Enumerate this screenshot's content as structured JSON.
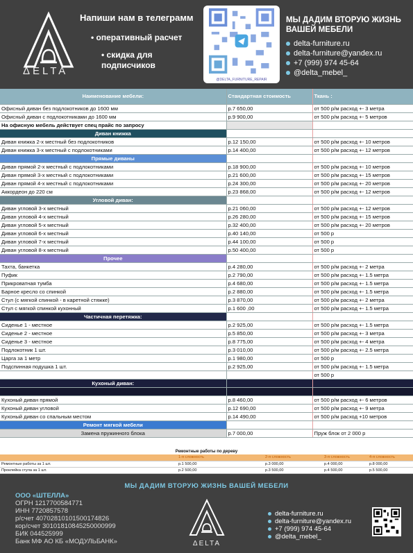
{
  "header": {
    "logo_text": "ΔELTA",
    "title": "Напиши нам в телеграмм",
    "bullets": [
      "оперативный расчет",
      "скидка для подписчиков"
    ],
    "qr_caption": "@DELTA_FURNITURE_REPAIR",
    "slogan": "МЫ ДАДИМ ВТОРУЮ ЖИЗНЬ ВАШЕЙ МЕБЕЛИ",
    "contacts": [
      "delta-furniture.ru",
      "delta-furniture@yandex.ru",
      "+7 (999) 974 45-64",
      "@delta_mebel_"
    ]
  },
  "table": {
    "headers": [
      "Наименование мебели:",
      "Стандартная стоимость",
      "Ткань :"
    ],
    "rows": [
      {
        "t": "row",
        "c": [
          "Офисный диван без подлокотников до 1600 мм",
          "р.7 650,00",
          "от 500 р/м расход +- 3 метра"
        ]
      },
      {
        "t": "row",
        "c": [
          "Офисный диван с подлокотниками до 1600 мм",
          "р.9 900,00",
          "от 500 р/м расход +- 5 метров"
        ]
      },
      {
        "t": "note",
        "c": [
          "На офисную мебель действует спец прайс по запросу",
          "",
          ""
        ]
      },
      {
        "t": "sec",
        "s": "s-teal",
        "c": [
          "Диван книжка",
          "",
          ""
        ]
      },
      {
        "t": "row",
        "c": [
          "Диван книжка 2-х местный без подлокотников",
          "р.12 150,00",
          "от 500 р/м расход +- 10 метров"
        ]
      },
      {
        "t": "row",
        "c": [
          "Диван книжка 3-х местный с подлокотниками",
          "р.14 400,00",
          "от 500 р/м расход +- 12 метров"
        ]
      },
      {
        "t": "sec",
        "s": "s-blue",
        "c": [
          "Прямые диваны",
          "",
          ""
        ]
      },
      {
        "t": "row",
        "c": [
          "Диван прямой 2-х местный с подлокотниками",
          "р.18 900,00",
          "от 500 р/м расход +- 10 метров"
        ]
      },
      {
        "t": "row",
        "c": [
          "Диван прямой 3-х местный с подлокотниками",
          "р.21 600,00",
          "от 500 р/м расход +- 15 метров"
        ]
      },
      {
        "t": "row",
        "c": [
          "Диван прямой 4-х местный с подлокотниками",
          "р.24 300,00",
          "от 500 р/м расход +- 20 метров"
        ]
      },
      {
        "t": "row",
        "c": [
          "Аккордеон до 220 см",
          "р.23 868,00",
          "от 500 р/м расход +- 12 метров"
        ]
      },
      {
        "t": "sec",
        "s": "s-slate",
        "c": [
          "Угловой диван:",
          "",
          ""
        ]
      },
      {
        "t": "row",
        "c": [
          "Диван угловой 3-х местный",
          "р.21 060,00",
          "от 500 р/м расход +- 12 метров"
        ]
      },
      {
        "t": "row",
        "c": [
          "Диван угловой 4-х местный",
          "р.26 280,00",
          "от 500 р/м расход +- 15 метров"
        ]
      },
      {
        "t": "row",
        "c": [
          "Диван угловой 5-х местный",
          "р.32 400,00",
          "от 500 р/м расход +- 20 метров"
        ]
      },
      {
        "t": "row",
        "c": [
          "Диван угловой 6-х местный",
          "р.40 140,00",
          "от 500 р"
        ]
      },
      {
        "t": "row",
        "c": [
          "Диван угловой 7-х местный",
          "р.44 100,00",
          "от 500 р"
        ]
      },
      {
        "t": "row",
        "c": [
          "Диван угловой 8-х местный",
          "р.50 400,00",
          "от 500 р"
        ]
      },
      {
        "t": "sec",
        "s": "s-purple",
        "c": [
          "Прочее",
          "",
          ""
        ]
      },
      {
        "t": "row",
        "c": [
          "Тахта, банкетка",
          "р.4 280,00",
          "от 500 р/м расход +- 2 метра"
        ]
      },
      {
        "t": "row",
        "c": [
          "Пуфик",
          "р.2 790,00",
          "от 500 р/м расход +- 1.5 метра"
        ]
      },
      {
        "t": "row",
        "c": [
          "Прикроватная тумба",
          "р.4 680,00",
          "от 500 р/м расход +- 1.5 метра"
        ]
      },
      {
        "t": "row",
        "c": [
          "Барное кресло со спинкой",
          "р.2 880,00",
          "от 500 р/м расход +- 1.5 метра"
        ]
      },
      {
        "t": "row",
        "c": [
          "Стул (с мягкой спинкой - в каретной стяжке)",
          "р.3 870,00",
          "от 500 р/м расход +- 2 метра"
        ]
      },
      {
        "t": "row",
        "c": [
          "Стул с мягкой спинкой кухонный",
          "р.1 600 ,00",
          "от 500 р/м расход +- 1.5 метра"
        ]
      },
      {
        "t": "sec",
        "s": "s-dark",
        "c": [
          "Частичная перетяжка:",
          "",
          ""
        ]
      },
      {
        "t": "row",
        "c": [
          "Сиденье 1 - местное",
          "р.2 925,00",
          "от 500 р/м расход +- 1.5 метра"
        ]
      },
      {
        "t": "row",
        "c": [
          "Сиденье 2 - местное",
          "р.5 850,00",
          "от 500 р/м расход +- 3 метра"
        ]
      },
      {
        "t": "row",
        "c": [
          "Сиденье 3 - местное",
          "р.8 775,00",
          "от 500 р/м расход +- 4 метра"
        ]
      },
      {
        "t": "row",
        "c": [
          "Подлокотник 1 шт.",
          "р.3 010,00",
          "от 500 р/м расход +- 2.5 метра"
        ]
      },
      {
        "t": "row",
        "c": [
          "Царга за 1 метр",
          "р.1 980,00",
          "от 500 р"
        ]
      },
      {
        "t": "row",
        "c": [
          "Подспинная подушка 1 шт.",
          "р.2 925,00",
          "от 500 р/м расход +- 1.5 метра"
        ]
      },
      {
        "t": "row",
        "c": [
          "",
          "",
          "от 500 р"
        ]
      },
      {
        "t": "navy",
        "c": [
          "Кухоный диван:",
          "",
          ""
        ]
      },
      {
        "t": "black",
        "c": [
          "",
          "",
          ""
        ]
      },
      {
        "t": "row",
        "c": [
          "Кухоный диван прямой",
          "р.8 460,00",
          "от 500 р/м расход +- 6 метров"
        ]
      },
      {
        "t": "row",
        "c": [
          "Кухоный диван угловой",
          "р.12 690,00",
          "от 500 р/м расход +- 9 метра"
        ]
      },
      {
        "t": "row",
        "c": [
          "Кухоный диван со спальным местом",
          "р.14 490,00",
          "от 500 р/м расход +10 метров"
        ]
      },
      {
        "t": "sec",
        "s": "s-mid",
        "c": [
          "Ремонт мягкой мебели",
          "",
          ""
        ]
      },
      {
        "t": "gray",
        "c": [
          "Замена пружинного блока",
          "р.7 000,00",
          "Пруж блок от 2 000 р"
        ]
      }
    ]
  },
  "repair": {
    "title": "Ремонтные работы по дереву",
    "headers": [
      "",
      "1-я сложность",
      "2-я сложность",
      "3-я сложность",
      "4-я сложность"
    ],
    "rows": [
      [
        "Ремонтные работы за 1 шт.",
        "р.1 500,00",
        "р.3 000,00",
        "р.4 000,00",
        "р.8 000,00"
      ],
      [
        "Проклейка стула за 1 шт.",
        "р.2 500,00",
        "р.3 500,00",
        "р.4 500,00",
        "р.5 500,00"
      ]
    ]
  },
  "footer": {
    "slogan": "МЫ ДАДИМ ВТОРУЮ ЖИЗНЬ ВАШЕЙ МЕБЕЛИ",
    "requisites": [
      "ООО «ШТЕЛЛА»",
      "ОГРН 1217700584771",
      "ИНН 7720857578",
      "р/счет 40702810101500174826",
      "кор/счет 30101810845250000999",
      "БИК 044525999",
      "Банк МФ АО КБ «МОДУЛЬБАНК»"
    ],
    "logo_text": "ΔELTA",
    "contacts": [
      "delta-furniture.ru",
      "delta-furniture@yandex.ru",
      "+7 (999) 974 45-64",
      "@delta_mebel_"
    ]
  },
  "colors": {
    "header_bg": "#404040",
    "accent": "#7ec8e3",
    "table_head": "#8fb3bf"
  }
}
